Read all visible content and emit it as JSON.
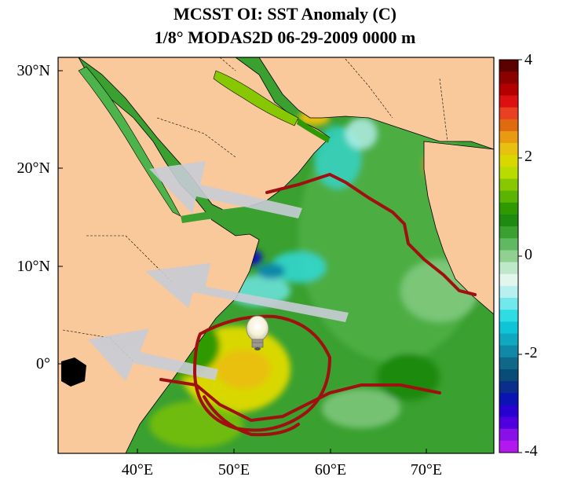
{
  "title_line1": "MCSST OI:  SST Anomaly (C)",
  "title_line2": "1/8° MODAS2D 06-29-2009 0000 m",
  "lat_labels": [
    "30°N",
    "20°N",
    "10°N",
    "0°"
  ],
  "lon_labels": [
    "40°E",
    "50°E",
    "60°E",
    "70°E"
  ],
  "colorbar": {
    "tick_labels": [
      "4",
      "2",
      "0",
      "-2",
      "-4"
    ],
    "range": [
      -4,
      4
    ],
    "colors_top_to_bottom": [
      "#5a0000",
      "#8c0000",
      "#b40000",
      "#dc1010",
      "#e84020",
      "#e06a10",
      "#e89a10",
      "#e8c010",
      "#d8d800",
      "#b8dc00",
      "#88c800",
      "#5ab400",
      "#2e9a00",
      "#1e8a10",
      "#3aa030",
      "#60b860",
      "#90d090",
      "#bfe8c8",
      "#e2f6ee",
      "#b8f0f0",
      "#70e8ec",
      "#30dce4",
      "#10c4d8",
      "#10a8c0",
      "#1088a8",
      "#106888",
      "#0a4c78",
      "#0a2e8c",
      "#0a14b4",
      "#2800d0",
      "#5000e0",
      "#8a10e8",
      "#b418f0"
    ]
  },
  "map": {
    "land_color": "#f9c89b",
    "ocean_base_color": "#3aa030",
    "annotation_color": "#a01010",
    "arrow_color": "#c8ccd6",
    "overlay_icons": [
      "arrow-wind-1",
      "arrow-wind-2",
      "arrow-wind-3",
      "lightbulb-icon"
    ]
  }
}
